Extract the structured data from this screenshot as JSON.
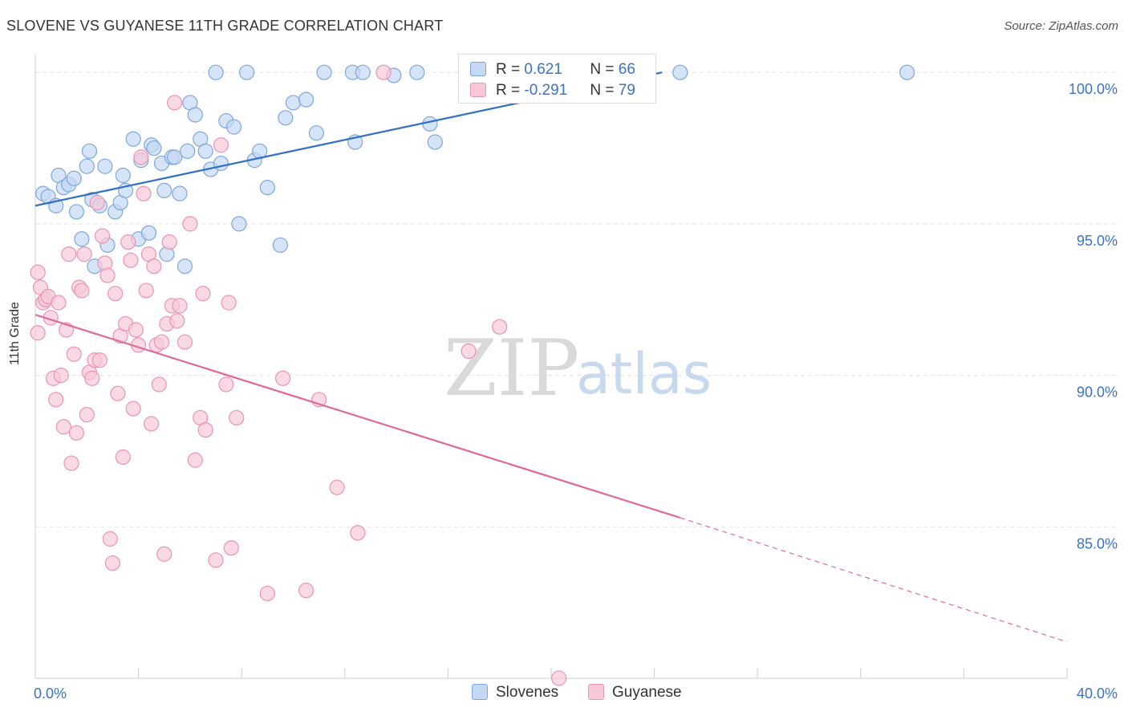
{
  "title": "SLOVENE VS GUYANESE 11TH GRADE CORRELATION CHART",
  "source": "Source: ZipAtlas.com",
  "watermark": {
    "zip": "ZIP",
    "atlas": "atlas"
  },
  "colors": {
    "slovenes_fill": "#c5d8f3",
    "slovenes_stroke": "#7fa6dc",
    "slovenes_line": "#2f6fc6",
    "guyanese_fill": "#f7c9d8",
    "guyanese_stroke": "#eb93b2",
    "guyanese_line": "#e0699a",
    "tick_color": "#3a73c4",
    "grid": "#e3e3e3"
  },
  "legend": {
    "rows": [
      {
        "r_label": "R =",
        "r_value": "0.621",
        "n_label": "N =",
        "n_value": "66"
      },
      {
        "r_label": "R =",
        "r_value": "-0.291",
        "n_label": "N =",
        "n_value": "79"
      }
    ]
  },
  "bottom_legend": [
    "Slovenes",
    "Guyanese"
  ],
  "chart_data": {
    "type": "scatter",
    "title": "SLOVENE VS GUYANESE 11TH GRADE CORRELATION CHART",
    "xlabel": "",
    "ylabel": "11th Grade",
    "xlim": [
      0,
      40
    ],
    "ylim": [
      80.0,
      100.8
    ],
    "x_tick_labels": [
      {
        "value": 0,
        "label": "0.0%"
      },
      {
        "value": 40,
        "label": "40.0%"
      }
    ],
    "y_tick_labels": [
      {
        "value": 100,
        "label": "100.0%"
      },
      {
        "value": 95,
        "label": "95.0%"
      },
      {
        "value": 90,
        "label": "90.0%"
      },
      {
        "value": 85,
        "label": "85.0%"
      }
    ],
    "x_minor_ticks": [
      4,
      8,
      12,
      16,
      20,
      24,
      28,
      32,
      36,
      40
    ],
    "grid": true,
    "legend_placement": "top-center",
    "series": [
      {
        "name": "Slovenes",
        "r": 0.621,
        "n": 66,
        "trend": {
          "x": [
            0,
            24.3
          ],
          "y": [
            95.6,
            100.0
          ]
        },
        "x": [
          0.3,
          0.5,
          0.8,
          0.9,
          1.1,
          1.3,
          1.5,
          1.6,
          1.8,
          2.0,
          2.1,
          2.2,
          2.3,
          2.5,
          2.7,
          2.8,
          3.1,
          3.3,
          3.4,
          3.5,
          3.8,
          4.0,
          4.1,
          4.4,
          4.5,
          4.6,
          4.9,
          5.0,
          5.1,
          5.3,
          5.4,
          5.6,
          5.8,
          5.9,
          6.0,
          6.2,
          6.4,
          6.6,
          6.8,
          7.0,
          7.2,
          7.4,
          7.7,
          7.9,
          8.2,
          8.5,
          8.7,
          9.0,
          9.5,
          9.7,
          10.0,
          10.5,
          10.9,
          11.2,
          12.3,
          12.4,
          12.7,
          13.9,
          14.8,
          15.3,
          15.5,
          16.7,
          21.9,
          22.3,
          25.0,
          33.8
        ],
        "y": [
          96.0,
          95.9,
          95.6,
          96.6,
          96.2,
          96.3,
          96.5,
          95.4,
          94.5,
          96.9,
          97.4,
          95.8,
          93.6,
          95.6,
          96.9,
          94.3,
          95.4,
          95.7,
          96.6,
          96.1,
          97.8,
          94.5,
          97.1,
          94.7,
          97.6,
          97.5,
          97.0,
          96.1,
          94.0,
          97.2,
          97.2,
          96.0,
          93.6,
          97.4,
          99.0,
          98.6,
          97.8,
          97.4,
          96.8,
          100.0,
          97.0,
          98.4,
          98.2,
          95.0,
          100.0,
          97.1,
          97.4,
          96.2,
          94.3,
          98.5,
          99.0,
          99.1,
          98.0,
          100.0,
          100.0,
          97.7,
          100.0,
          99.9,
          100.0,
          98.3,
          97.7,
          100.0,
          100.0,
          99.9,
          100.0,
          100.0
        ]
      },
      {
        "name": "Guyanese",
        "r": -0.291,
        "n": 79,
        "trend": {
          "x": [
            0,
            25.0,
            40.0
          ],
          "y": [
            92.0,
            85.3,
            81.2
          ],
          "solid_until": 25.0
        },
        "x": [
          0.1,
          0.1,
          0.2,
          0.3,
          0.4,
          0.5,
          0.6,
          0.7,
          0.8,
          0.9,
          1.0,
          1.1,
          1.2,
          1.3,
          1.4,
          1.5,
          1.6,
          1.7,
          1.8,
          1.9,
          2.0,
          2.1,
          2.2,
          2.3,
          2.4,
          2.5,
          2.6,
          2.7,
          2.8,
          2.9,
          3.0,
          3.1,
          3.2,
          3.3,
          3.4,
          3.5,
          3.6,
          3.7,
          3.8,
          3.9,
          4.0,
          4.1,
          4.2,
          4.3,
          4.4,
          4.5,
          4.6,
          4.7,
          4.8,
          4.9,
          5.0,
          5.1,
          5.2,
          5.3,
          5.4,
          5.5,
          5.6,
          5.8,
          6.0,
          6.2,
          6.4,
          6.5,
          6.6,
          7.0,
          7.2,
          7.4,
          7.5,
          7.6,
          7.8,
          9.0,
          9.6,
          10.5,
          11.0,
          11.7,
          12.5,
          13.5,
          16.8,
          18.0,
          20.3
        ],
        "y": [
          93.4,
          91.4,
          92.9,
          92.4,
          92.5,
          92.6,
          91.9,
          89.9,
          89.2,
          92.4,
          90.0,
          88.3,
          91.5,
          94.0,
          87.1,
          90.7,
          88.1,
          92.9,
          92.8,
          94.0,
          88.7,
          90.1,
          89.9,
          90.5,
          95.7,
          90.5,
          94.6,
          93.7,
          93.3,
          84.6,
          83.8,
          92.7,
          89.4,
          91.3,
          87.3,
          91.7,
          94.4,
          93.8,
          88.9,
          91.5,
          91.0,
          97.2,
          96.0,
          92.8,
          94.0,
          88.4,
          93.6,
          91.0,
          89.7,
          91.1,
          84.1,
          91.7,
          94.4,
          92.3,
          99.0,
          91.8,
          92.3,
          91.1,
          95.0,
          87.2,
          88.6,
          92.7,
          88.2,
          83.9,
          97.6,
          89.7,
          92.4,
          84.3,
          88.6,
          82.8,
          89.9,
          82.9,
          89.2,
          86.3,
          84.8,
          100.0,
          90.8,
          91.6,
          80.0
        ]
      }
    ]
  }
}
